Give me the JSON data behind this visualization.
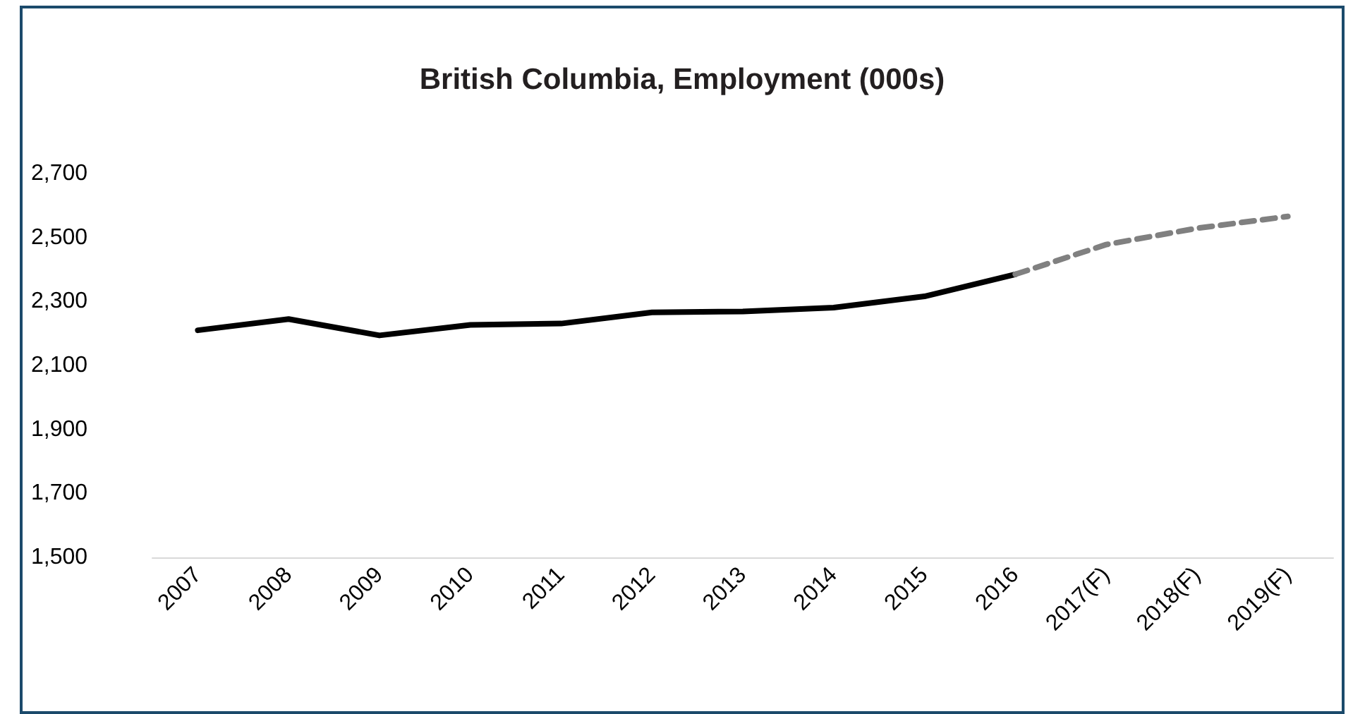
{
  "chart_data": {
    "type": "line",
    "title": "British Columbia, Employment (000s)",
    "categories": [
      "2007",
      "2008",
      "2009",
      "2010",
      "2011",
      "2012",
      "2013",
      "2014",
      "2015",
      "2016",
      "2017(F)",
      "2018(F)",
      "2019(F)"
    ],
    "series": [
      {
        "color": "#000000",
        "line_style": "solid",
        "values": [
          2210,
          2245,
          2194,
          2227,
          2231,
          2266,
          2269,
          2281,
          2316,
          2385,
          null,
          null,
          null
        ]
      },
      {
        "color": "#808080",
        "line_style": "dashed",
        "values": [
          null,
          null,
          null,
          null,
          null,
          null,
          null,
          null,
          null,
          2385,
          2478,
          2529,
          2566
        ]
      }
    ],
    "ylim": [
      1500,
      2700
    ],
    "yticks": [
      {
        "value": 1500,
        "label": "1,500"
      },
      {
        "value": 1700,
        "label": "1,700"
      },
      {
        "value": 1900,
        "label": "1,900"
      },
      {
        "value": 2100,
        "label": "2,100"
      },
      {
        "value": 2300,
        "label": "2,300"
      },
      {
        "value": 2500,
        "label": "2,500"
      },
      {
        "value": 2700,
        "label": "2,700"
      }
    ],
    "grid": false,
    "marker": "none"
  }
}
